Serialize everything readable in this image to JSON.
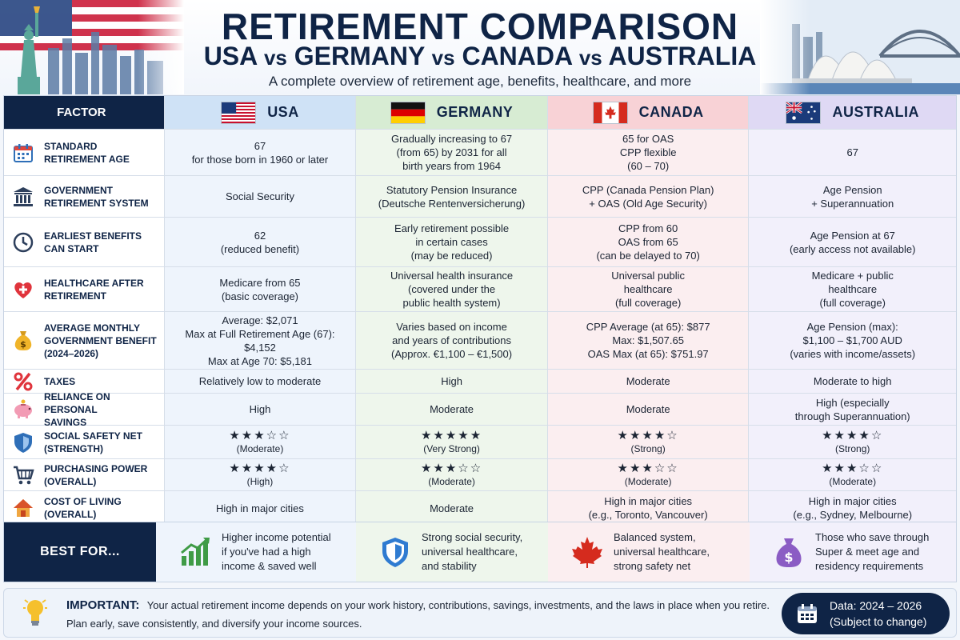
{
  "header": {
    "title": "RETIREMENT COMPARISON",
    "subtitle_usa": "USA",
    "subtitle_germany": "GERMANY",
    "subtitle_canada": "CANADA",
    "subtitle_australia": "AUSTRALIA",
    "vs": "vs",
    "tagline": "A complete overview of retirement age, benefits, healthcare, and more"
  },
  "columns": {
    "factor": "FACTOR",
    "usa": "USA",
    "germany": "GERMANY",
    "canada": "CANADA",
    "australia": "AUSTRALIA"
  },
  "rows": [
    {
      "icon": "calendar-icon",
      "label": "STANDARD\nRETIREMENT AGE",
      "usa": "67\nfor those born in 1960 or later",
      "germany": "Gradually increasing to 67\n(from 65) by 2031 for all\nbirth years from 1964",
      "canada": "65 for OAS\nCPP flexible\n(60 – 70)",
      "australia": "67"
    },
    {
      "icon": "bank-icon",
      "label": "GOVERNMENT\nRETIREMENT SYSTEM",
      "usa": "Social Security",
      "germany": "Statutory Pension Insurance\n(Deutsche Rentenversicherung)",
      "canada": "CPP (Canada Pension Plan)\n+ OAS (Old Age Security)",
      "australia": "Age Pension\n+ Superannuation"
    },
    {
      "icon": "clock-icon",
      "label": "EARLIEST BENEFITS\nCAN START",
      "usa": "62\n(reduced benefit)",
      "germany": "Early retirement possible\nin certain cases\n(may be reduced)",
      "canada": "CPP from 60\nOAS from 65\n(can be delayed to 70)",
      "australia": "Age Pension at 67\n(early access not available)"
    },
    {
      "icon": "heart-icon",
      "label": "HEALTHCARE AFTER\nRETIREMENT",
      "usa": "Medicare from 65\n(basic coverage)",
      "germany": "Universal health insurance\n(covered under the\npublic health system)",
      "canada": "Universal public\nhealthcare\n(full coverage)",
      "australia": "Medicare + public\nhealthcare\n(full coverage)"
    },
    {
      "icon": "money-bag-icon",
      "label": "AVERAGE MONTHLY\nGOVERNMENT BENEFIT\n(2024–2026)",
      "usa": "Average: $2,071\nMax at Full Retirement Age (67): $4,152\nMax at Age 70: $5,181",
      "germany": "Varies based on income\nand years of contributions\n(Approx. €1,100 – €1,500)",
      "canada": "CPP Average (at 65): $877\nMax: $1,507.65\nOAS Max (at 65): $751.97",
      "australia": "Age Pension (max):\n$1,100 – $1,700 AUD\n(varies with income/assets)"
    },
    {
      "icon": "percent-icon",
      "label": "TAXES",
      "usa": "Relatively low to moderate",
      "germany": "High",
      "canada": "Moderate",
      "australia": "Moderate to high"
    },
    {
      "icon": "piggy-bank-icon",
      "label": "RELIANCE ON PERSONAL\nSAVINGS",
      "usa": "High",
      "germany": "Moderate",
      "canada": "Moderate",
      "australia": "High (especially\nthrough Superannuation)"
    },
    {
      "icon": "shield-icon",
      "label": "SOCIAL SAFETY NET\n(STRENGTH)",
      "stars": true,
      "usa": {
        "stars": "★★★☆☆",
        "rating": 3,
        "text": "(Moderate)"
      },
      "germany": {
        "stars": "★★★★★",
        "rating": 5,
        "text": "(Very Strong)"
      },
      "canada": {
        "stars": "★★★★☆",
        "rating": 4,
        "text": "(Strong)"
      },
      "australia": {
        "stars": "★★★★☆",
        "rating": 4,
        "text": "(Strong)"
      }
    },
    {
      "icon": "cart-icon",
      "label": "PURCHASING POWER\n(OVERALL)",
      "stars": true,
      "usa": {
        "stars": "★★★★☆",
        "rating": 4,
        "text": "(High)"
      },
      "germany": {
        "stars": "★★★☆☆",
        "rating": 3,
        "text": "(Moderate)"
      },
      "canada": {
        "stars": "★★★☆☆",
        "rating": 3,
        "text": "(Moderate)"
      },
      "australia": {
        "stars": "★★★☆☆",
        "rating": 3,
        "text": "(Moderate)"
      }
    },
    {
      "icon": "house-icon",
      "label": "COST OF LIVING\n(OVERALL)",
      "usa": "High in major cities",
      "germany": "Moderate",
      "canada": "High in major cities\n(e.g., Toronto, Vancouver)",
      "australia": "High in major cities\n(e.g., Sydney, Melbourne)"
    }
  ],
  "best_for": {
    "label": "BEST FOR...",
    "usa": {
      "icon": "growth-chart-icon",
      "text": "Higher income potential\nif you've had a high\nincome & saved well"
    },
    "germany": {
      "icon": "shield-icon",
      "text": "Strong social security,\nuniversal healthcare,\nand stability"
    },
    "canada": {
      "icon": "maple-leaf-icon",
      "text": "Balanced system,\nuniversal healthcare,\nstrong safety net"
    },
    "australia": {
      "icon": "money-bag-icon",
      "text": "Those who save through\nSuper & meet age and\nresidency requirements"
    }
  },
  "footer": {
    "important_label": "IMPORTANT:",
    "important_text": "Your actual retirement income depends on your work history, contributions, savings, investments, and the laws in place when you retire.",
    "important_text2": "Plan early, save consistently, and diversify your income sources.",
    "data_line1": "Data: 2024 – 2026",
    "data_line2": "(Subject to change)"
  },
  "colors": {
    "navy": "#0f2446",
    "usa_bg": "#eef4fc",
    "germany_bg": "#eef6ec",
    "canada_bg": "#fbeef0",
    "australia_bg": "#f2f0fb"
  }
}
